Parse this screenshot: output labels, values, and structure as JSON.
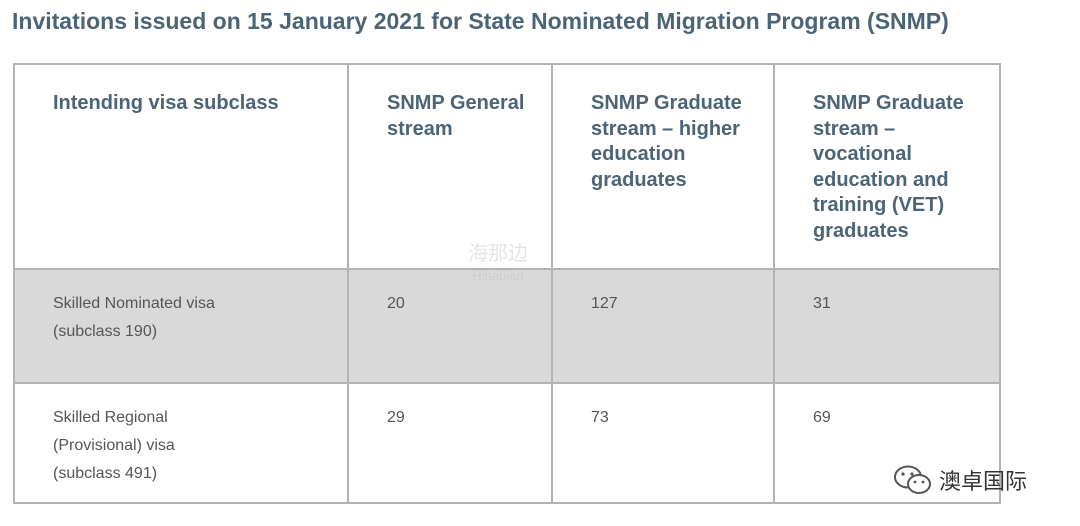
{
  "title": "Invitations issued on 15 January 2021 for State Nominated Migration Program (SNMP)",
  "table": {
    "header": [
      "Intending visa subclass",
      "SNMP General stream",
      "SNMP Graduate stream – higher education graduates",
      "SNMP Graduate stream – vocational education and training (VET) graduates"
    ],
    "rows": [
      [
        "Skilled Nominated visa (subclass 190)",
        20,
        127,
        31
      ],
      [
        "Skilled Regional (Provisional) visa (subclass 491)",
        29,
        73,
        69
      ]
    ]
  },
  "watermark": {
    "name": "海那边",
    "latin": "Hinabian"
  },
  "footer": {
    "brand": "澳卓国际"
  }
}
